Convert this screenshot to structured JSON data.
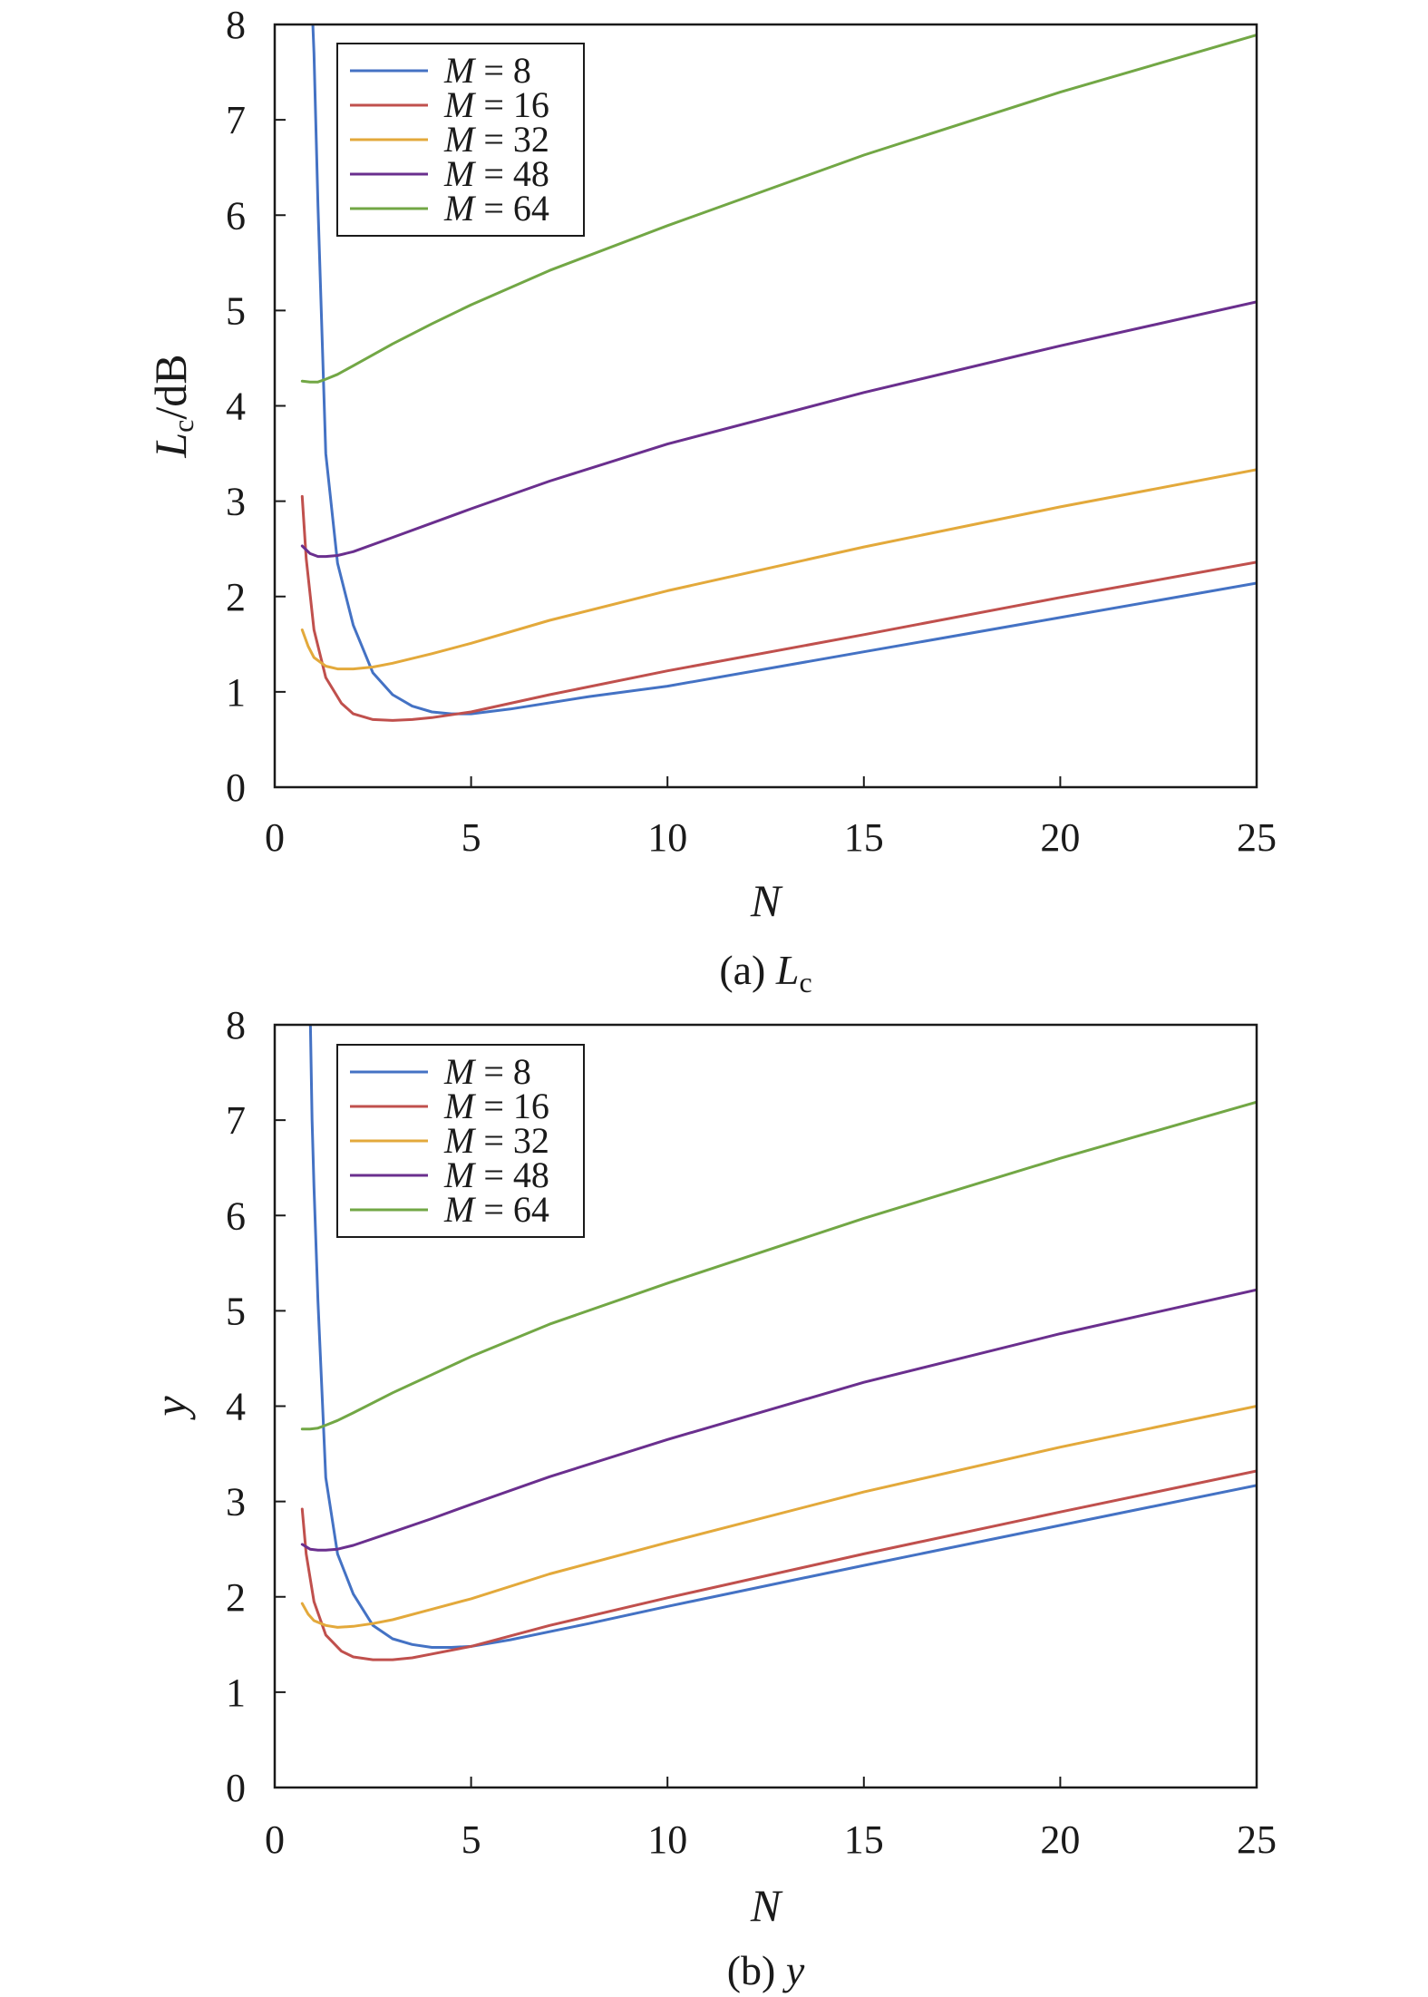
{
  "colors": {
    "M8": "#4472c4",
    "M16": "#c0504d",
    "M32": "#e3a93b",
    "M48": "#6a2f8e",
    "M64": "#72a745"
  },
  "chart_data": [
    {
      "type": "line",
      "caption": {
        "prefix": "(a) ",
        "var": "L",
        "sub": "c"
      },
      "ylabel": {
        "var": "L",
        "sub": "c",
        "suffix": "/dB"
      },
      "xlabel": "N",
      "xlim": [
        0,
        25
      ],
      "ylim": [
        0,
        8
      ],
      "xticks": [
        "0",
        "5",
        "10",
        "15",
        "20",
        "25"
      ],
      "yticks": [
        "0",
        "1",
        "2",
        "3",
        "4",
        "5",
        "6",
        "7",
        "8"
      ],
      "grid": false,
      "legend_position": "top-left",
      "series": [
        {
          "name": "M = 8",
          "color_key": "M8",
          "x": [
            0.95,
            1.0,
            1.1,
            1.3,
            1.6,
            2.0,
            2.5,
            3.0,
            3.5,
            4.0,
            4.5,
            5.0,
            6.0,
            8.0,
            10.0,
            15.0,
            20.0,
            25.0
          ],
          "y": [
            8.2,
            7.7,
            6.1,
            3.5,
            2.35,
            1.7,
            1.2,
            0.97,
            0.85,
            0.79,
            0.77,
            0.77,
            0.82,
            0.95,
            1.06,
            1.42,
            1.78,
            2.14
          ]
        },
        {
          "name": "M = 16",
          "color_key": "M16",
          "x": [
            0.7,
            0.8,
            1.0,
            1.3,
            1.7,
            2.0,
            2.5,
            3.0,
            3.5,
            4.0,
            5.0,
            7.0,
            10.0,
            15.0,
            20.0,
            25.0
          ],
          "y": [
            3.05,
            2.4,
            1.65,
            1.15,
            0.88,
            0.77,
            0.71,
            0.7,
            0.71,
            0.73,
            0.79,
            0.97,
            1.22,
            1.6,
            1.99,
            2.36
          ]
        },
        {
          "name": "M = 32",
          "color_key": "M32",
          "x": [
            0.7,
            0.85,
            1.0,
            1.3,
            1.6,
            2.0,
            2.5,
            3.0,
            4.0,
            5.0,
            7.0,
            10.0,
            15.0,
            20.0,
            25.0
          ],
          "y": [
            1.65,
            1.48,
            1.36,
            1.27,
            1.24,
            1.24,
            1.26,
            1.3,
            1.4,
            1.51,
            1.75,
            2.06,
            2.52,
            2.94,
            3.33
          ]
        },
        {
          "name": "M = 48",
          "color_key": "M48",
          "x": [
            0.7,
            0.9,
            1.1,
            1.3,
            1.6,
            2.0,
            3.0,
            4.0,
            5.0,
            7.0,
            10.0,
            15.0,
            20.0,
            25.0
          ],
          "y": [
            2.53,
            2.45,
            2.42,
            2.42,
            2.43,
            2.47,
            2.62,
            2.77,
            2.92,
            3.21,
            3.6,
            4.14,
            4.63,
            5.09
          ]
        },
        {
          "name": "M = 64",
          "color_key": "M64",
          "x": [
            0.7,
            0.9,
            1.1,
            1.3,
            1.6,
            2.0,
            3.0,
            4.0,
            5.0,
            7.0,
            10.0,
            15.0,
            20.0,
            25.0
          ],
          "y": [
            4.26,
            4.25,
            4.25,
            4.28,
            4.33,
            4.42,
            4.65,
            4.86,
            5.06,
            5.42,
            5.89,
            6.63,
            7.29,
            7.89
          ]
        }
      ]
    },
    {
      "type": "line",
      "caption": {
        "prefix": "(b) ",
        "var": "y",
        "sub": ""
      },
      "ylabel": {
        "var": "y",
        "sub": "",
        "suffix": ""
      },
      "xlabel": "N",
      "xlim": [
        0,
        25
      ],
      "ylim": [
        0,
        8
      ],
      "xticks": [
        "0",
        "5",
        "10",
        "15",
        "20",
        "25"
      ],
      "yticks": [
        "0",
        "1",
        "2",
        "3",
        "4",
        "5",
        "6",
        "7",
        "8"
      ],
      "grid": false,
      "legend_position": "top-left",
      "series": [
        {
          "name": "M = 8",
          "color_key": "M8",
          "x": [
            0.9,
            0.95,
            1.0,
            1.1,
            1.3,
            1.6,
            2.0,
            2.5,
            3.0,
            3.5,
            4.0,
            4.5,
            5.0,
            6.0,
            8.0,
            10.0,
            15.0,
            20.0,
            25.0
          ],
          "y": [
            8.2,
            7.0,
            6.3,
            5.1,
            3.25,
            2.45,
            2.03,
            1.7,
            1.56,
            1.5,
            1.47,
            1.47,
            1.48,
            1.55,
            1.72,
            1.9,
            2.33,
            2.75,
            3.17
          ]
        },
        {
          "name": "M = 16",
          "color_key": "M16",
          "x": [
            0.7,
            0.8,
            1.0,
            1.3,
            1.7,
            2.0,
            2.5,
            3.0,
            3.5,
            4.0,
            5.0,
            7.0,
            10.0,
            15.0,
            20.0,
            25.0
          ],
          "y": [
            2.92,
            2.45,
            1.95,
            1.6,
            1.43,
            1.37,
            1.34,
            1.34,
            1.36,
            1.4,
            1.48,
            1.7,
            1.99,
            2.45,
            2.89,
            3.32
          ]
        },
        {
          "name": "M = 32",
          "color_key": "M32",
          "x": [
            0.7,
            0.85,
            1.0,
            1.3,
            1.6,
            2.0,
            2.5,
            3.0,
            4.0,
            5.0,
            7.0,
            10.0,
            15.0,
            20.0,
            25.0
          ],
          "y": [
            1.93,
            1.82,
            1.75,
            1.7,
            1.68,
            1.69,
            1.72,
            1.76,
            1.87,
            1.98,
            2.24,
            2.57,
            3.1,
            3.57,
            4.0
          ]
        },
        {
          "name": "M = 48",
          "color_key": "M48",
          "x": [
            0.7,
            0.9,
            1.1,
            1.3,
            1.6,
            2.0,
            3.0,
            4.0,
            5.0,
            7.0,
            10.0,
            15.0,
            20.0,
            25.0
          ],
          "y": [
            2.55,
            2.5,
            2.49,
            2.49,
            2.5,
            2.54,
            2.68,
            2.82,
            2.97,
            3.26,
            3.65,
            4.25,
            4.76,
            5.22
          ]
        },
        {
          "name": "M = 64",
          "color_key": "M64",
          "x": [
            0.7,
            0.9,
            1.1,
            1.3,
            1.6,
            2.0,
            3.0,
            4.0,
            5.0,
            7.0,
            10.0,
            15.0,
            20.0,
            25.0
          ],
          "y": [
            3.76,
            3.76,
            3.77,
            3.8,
            3.85,
            3.93,
            4.14,
            4.33,
            4.52,
            4.86,
            5.29,
            5.97,
            6.6,
            7.19
          ]
        }
      ]
    }
  ]
}
